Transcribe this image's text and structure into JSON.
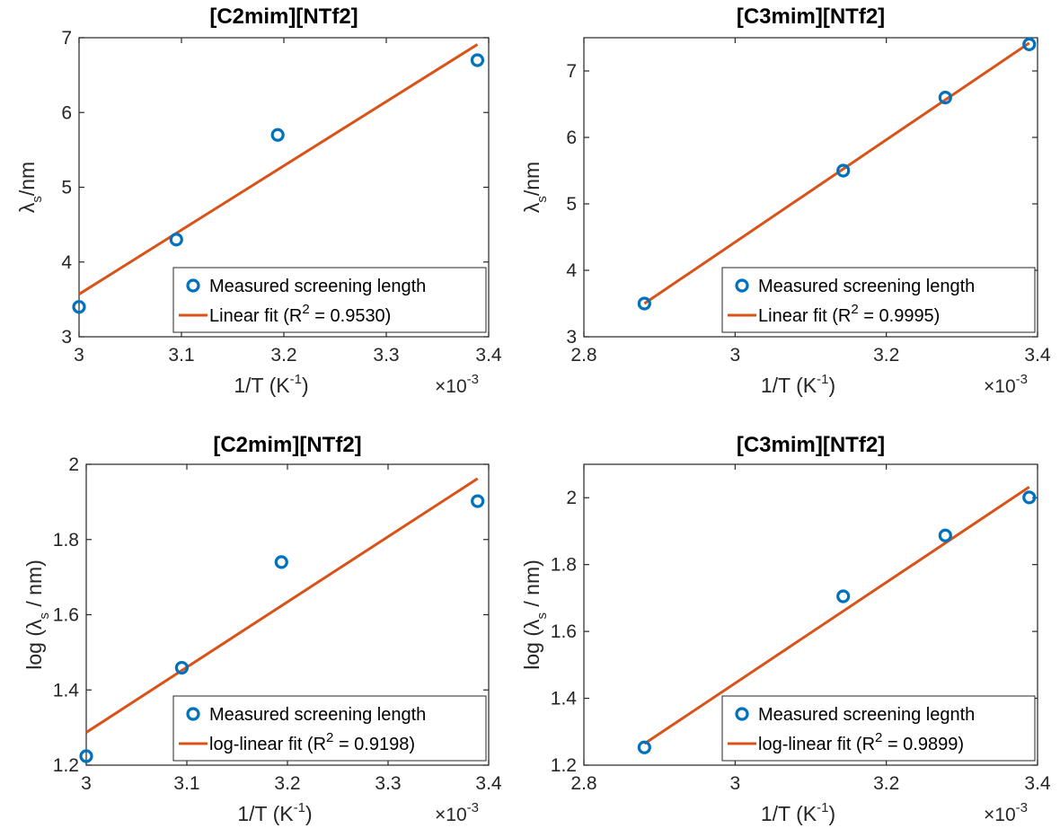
{
  "chart_data": [
    {
      "type": "scatter",
      "title": "[C2mim][NTf2]",
      "xlabel": "1/T (K-1)",
      "xlabel_parts": {
        "main": "1/T (K",
        "sup": "-1",
        "close": ")"
      },
      "ylabel_parts": {
        "main": "λ",
        "sub": "s",
        "rest": "/nm"
      },
      "x_exponent": {
        "prefix": "×10",
        "sup": "-3"
      },
      "xlim": [
        3.0,
        3.4
      ],
      "ylim": [
        3,
        7
      ],
      "xticks": [
        3,
        3.1,
        3.2,
        3.3,
        3.4
      ],
      "xtick_labels": [
        "3",
        "3.1",
        "3.2",
        "3.3",
        "3.4"
      ],
      "yticks": [
        3,
        4,
        5,
        6,
        7
      ],
      "ytick_labels": [
        "3",
        "4",
        "5",
        "6",
        "7"
      ],
      "legend_position": "bottom-right",
      "series": [
        {
          "name": "Measured screening length",
          "kind": "points",
          "x": [
            3.0,
            3.095,
            3.194,
            3.389
          ],
          "y": [
            3.4,
            4.3,
            5.7,
            6.7
          ]
        },
        {
          "name": "Linear fit",
          "kind": "line",
          "x": [
            3.0,
            3.389
          ],
          "y": [
            3.57,
            6.91
          ]
        }
      ],
      "legend_entries": [
        {
          "text": "Measured screening length"
        },
        {
          "prefix": "Linear fit (R",
          "sup": "2",
          "suffix": " = 0.9530)"
        }
      ]
    },
    {
      "type": "scatter",
      "title": "[C3mim][NTf2]",
      "xlabel": "1/T (K-1)",
      "xlabel_parts": {
        "main": "1/T (K",
        "sup": "-1",
        "close": ")"
      },
      "ylabel_parts": {
        "main": "λ",
        "sub": "s",
        "rest": "/nm"
      },
      "x_exponent": {
        "prefix": "×10",
        "sup": "-3"
      },
      "xlim": [
        2.8,
        3.4
      ],
      "ylim": [
        3,
        7.5
      ],
      "xticks": [
        2.8,
        3,
        3.2,
        3.4
      ],
      "xtick_labels": [
        "2.8",
        "3",
        "3.2",
        "3.4"
      ],
      "yticks": [
        3,
        4,
        5,
        6,
        7
      ],
      "ytick_labels": [
        "3",
        "4",
        "5",
        "6",
        "7"
      ],
      "legend_position": "bottom-right",
      "series": [
        {
          "name": "Measured screening length",
          "kind": "points",
          "x": [
            2.88,
            3.143,
            3.278,
            3.389
          ],
          "y": [
            3.5,
            5.5,
            6.6,
            7.4
          ]
        },
        {
          "name": "Linear fit",
          "kind": "line",
          "x": [
            2.88,
            3.389
          ],
          "y": [
            3.5,
            7.42
          ]
        }
      ],
      "legend_entries": [
        {
          "text": "Measured screening length"
        },
        {
          "prefix": "Linear fit (R",
          "sup": "2",
          "suffix": " = 0.9995)"
        }
      ]
    },
    {
      "type": "scatter",
      "title": "[C2mim][NTf2]",
      "xlabel": "1/T (K-1)",
      "xlabel_parts": {
        "main": "1/T (K",
        "sup": "-1",
        "close": ")"
      },
      "ylabel_parts": {
        "main": "log (λ",
        "sub": "s",
        "rest": " / nm)"
      },
      "x_exponent": {
        "prefix": "×10",
        "sup": "-3"
      },
      "xlim": [
        3.0,
        3.4
      ],
      "ylim": [
        1.2,
        2
      ],
      "xticks": [
        3,
        3.1,
        3.2,
        3.3,
        3.4
      ],
      "xtick_labels": [
        "3",
        "3.1",
        "3.2",
        "3.3",
        "3.4"
      ],
      "yticks": [
        1.2,
        1.4,
        1.6,
        1.8,
        2
      ],
      "ytick_labels": [
        "1.2",
        "1.4",
        "1.6",
        "1.8",
        "2"
      ],
      "legend_position": "bottom-right",
      "series": [
        {
          "name": "Measured screening length",
          "kind": "points",
          "x": [
            3.0,
            3.095,
            3.194,
            3.389
          ],
          "y": [
            1.224,
            1.459,
            1.74,
            1.902
          ]
        },
        {
          "name": "log-linear fit",
          "kind": "line",
          "x": [
            3.0,
            3.389
          ],
          "y": [
            1.287,
            1.962
          ]
        }
      ],
      "legend_entries": [
        {
          "text": "Measured screening length"
        },
        {
          "prefix": "log-linear fit (R",
          "sup": "2",
          "suffix": " = 0.9198)"
        }
      ]
    },
    {
      "type": "scatter",
      "title": "[C3mim][NTf2]",
      "xlabel": "1/T (K-1)",
      "xlabel_parts": {
        "main": "1/T (K",
        "sup": "-1",
        "close": ")"
      },
      "ylabel_parts": {
        "main": "log (λ",
        "sub": "s",
        "rest": " / nm)"
      },
      "x_exponent": {
        "prefix": "×10",
        "sup": "-3"
      },
      "xlim": [
        2.8,
        3.4
      ],
      "ylim": [
        1.2,
        2.1
      ],
      "xticks": [
        2.8,
        3,
        3.2,
        3.4
      ],
      "xtick_labels": [
        "2.8",
        "3",
        "3.2",
        "3.4"
      ],
      "yticks": [
        1.2,
        1.4,
        1.6,
        1.8,
        2
      ],
      "ytick_labels": [
        "1.2",
        "1.4",
        "1.6",
        "1.8",
        "2"
      ],
      "legend_position": "bottom-right",
      "series": [
        {
          "name": "Measured screening legnth",
          "kind": "points",
          "x": [
            2.88,
            3.143,
            3.278,
            3.389
          ],
          "y": [
            1.253,
            1.705,
            1.887,
            2.001
          ]
        },
        {
          "name": "log-linear fit",
          "kind": "line",
          "x": [
            2.88,
            3.389
          ],
          "y": [
            1.264,
            2.032
          ]
        }
      ],
      "legend_entries": [
        {
          "text": "Measured screening legnth"
        },
        {
          "prefix": "log-linear fit (R",
          "sup": "2",
          "suffix": " = 0.9899)"
        }
      ]
    }
  ],
  "colors": {
    "points": "#0072BD",
    "fit_line": "#D95319",
    "axes": "#262626"
  }
}
